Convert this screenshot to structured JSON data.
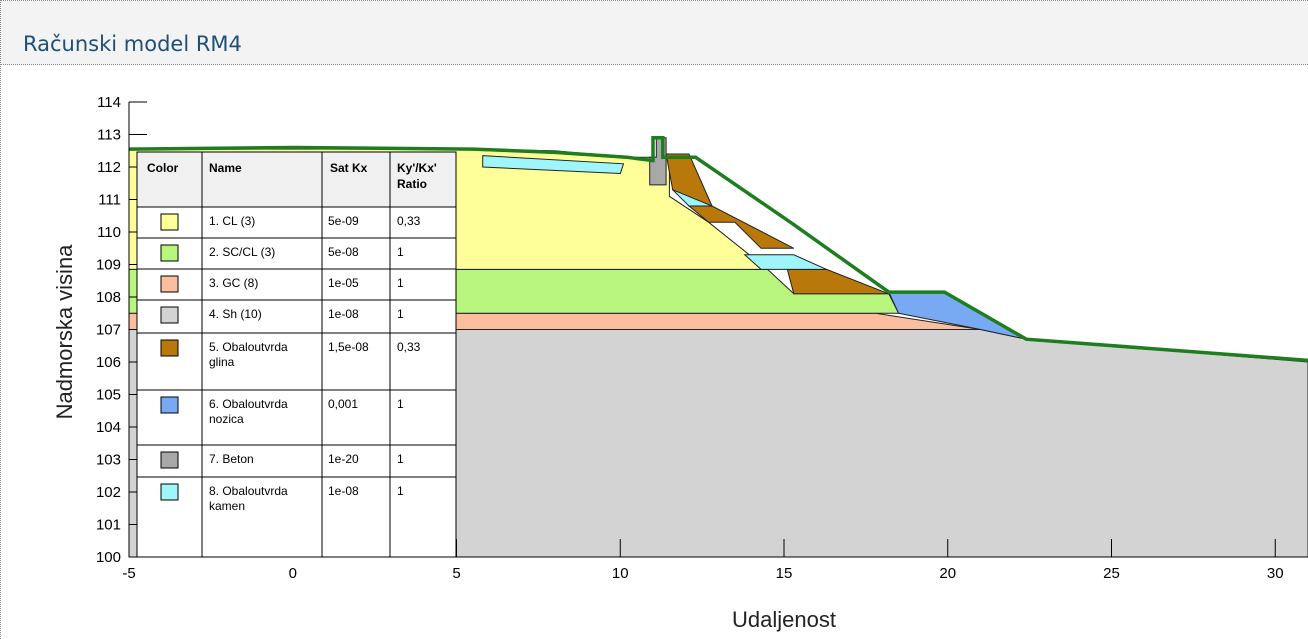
{
  "header": {
    "title": "Računski model RM4"
  },
  "chart_data": {
    "type": "diagram",
    "xlabel": "Udaljenost",
    "ylabel": "Nadmorska visina",
    "xlim": [
      -5,
      31
    ],
    "ylim": [
      100,
      114
    ],
    "x_ticks": [
      -5,
      0,
      5,
      10,
      15,
      20,
      25,
      30
    ],
    "y_ticks": [
      100,
      101,
      102,
      103,
      104,
      105,
      106,
      107,
      108,
      109,
      110,
      111,
      112,
      113,
      114
    ],
    "colors": {
      "clay": "#ffff99",
      "sc": "#b7f57d",
      "gc": "#fbbfa0",
      "shale": "#d3d3d3",
      "obal_glina": "#b8780a",
      "obal_nozica": "#77aaf2",
      "beton": "#a8a8a8",
      "obal_kamen": "#9ef5fa",
      "surface": "#1e7d1e"
    },
    "legend": {
      "headers": [
        "Color",
        "Name",
        "Sat Kx",
        "Ky'/Kx' Ratio"
      ],
      "rows": [
        {
          "color": "#ffff99",
          "name": "1. CL (3)",
          "sat_kx": "5e-09",
          "ratio": "0,33"
        },
        {
          "color": "#b7f57d",
          "name": "2. SC/CL (3)",
          "sat_kx": "5e-08",
          "ratio": "1"
        },
        {
          "color": "#fbbfa0",
          "name": "3. GC (8)",
          "sat_kx": "1e-05",
          "ratio": "1"
        },
        {
          "color": "#d3d3d3",
          "name": "4. Sh (10)",
          "sat_kx": "1e-08",
          "ratio": "1"
        },
        {
          "color": "#b8780a",
          "name": "5. Obaloutvrda glina",
          "sat_kx": "1,5e-08",
          "ratio": "0,33"
        },
        {
          "color": "#77aaf2",
          "name": "6. Obaloutvrda nozica",
          "sat_kx": "0,001",
          "ratio": "1"
        },
        {
          "color": "#a8a8a8",
          "name": "7. Beton",
          "sat_kx": "1e-20",
          "ratio": "1"
        },
        {
          "color": "#9ef5fa",
          "name": "8. Obaloutvrda kamen",
          "sat_kx": "1e-08",
          "ratio": "1"
        }
      ]
    },
    "regions": [
      {
        "material": "shale",
        "color": "#d3d3d3",
        "points": [
          [
            -5,
            100
          ],
          [
            31,
            100
          ],
          [
            31,
            106
          ],
          [
            22.4,
            106.7
          ],
          [
            21,
            107
          ],
          [
            -5,
            107
          ]
        ]
      },
      {
        "material": "gc",
        "color": "#fbbfa0",
        "points": [
          [
            -5,
            107
          ],
          [
            21,
            107
          ],
          [
            17.8,
            107.5
          ],
          [
            -5,
            107.5
          ]
        ]
      },
      {
        "material": "sc",
        "color": "#b7f57d",
        "points": [
          [
            -5,
            107.5
          ],
          [
            18.5,
            107.5
          ],
          [
            18.2,
            108.1
          ],
          [
            15.3,
            108.1
          ],
          [
            14.5,
            108.85
          ],
          [
            -5,
            108.85
          ]
        ]
      },
      {
        "material": "clay",
        "color": "#ffff99",
        "points": [
          [
            -5,
            108.85
          ],
          [
            14.5,
            108.85
          ],
          [
            12.7,
            110.3
          ],
          [
            11.5,
            111.1
          ],
          [
            11.5,
            112.3
          ],
          [
            10.2,
            112.3
          ],
          [
            8,
            112.5
          ],
          [
            5.5,
            112.55
          ],
          [
            -5,
            112.55
          ]
        ]
      },
      {
        "material": "obal_nozica",
        "color": "#77aaf2",
        "points": [
          [
            18.5,
            107.5
          ],
          [
            21,
            107
          ],
          [
            22.4,
            106.7
          ],
          [
            19.9,
            108.15
          ],
          [
            18.2,
            108.15
          ]
        ]
      },
      {
        "material": "obal_glina",
        "color": "#b8780a",
        "points": [
          [
            15.3,
            108.1
          ],
          [
            18.2,
            108.1
          ],
          [
            16.3,
            108.85
          ],
          [
            15.1,
            108.85
          ]
        ]
      },
      {
        "material": "obal_kamen",
        "color": "#9ef5fa",
        "points": [
          [
            13.8,
            109.3
          ],
          [
            14.3,
            108.85
          ],
          [
            16.3,
            108.85
          ],
          [
            15.3,
            109.3
          ]
        ]
      },
      {
        "material": "obal_glina",
        "color": "#b8780a",
        "points": [
          [
            12.7,
            110.3
          ],
          [
            13.5,
            110.3
          ],
          [
            14.3,
            109.5
          ],
          [
            15.3,
            109.5
          ],
          [
            12.8,
            110.8
          ],
          [
            12.1,
            110.8
          ]
        ]
      },
      {
        "material": "obal_kamen",
        "color": "#9ef5fa",
        "points": [
          [
            11.6,
            111.3
          ],
          [
            12.1,
            110.8
          ],
          [
            12.8,
            110.8
          ],
          [
            11.9,
            111.3
          ]
        ]
      },
      {
        "material": "obal_glina",
        "color": "#b8780a",
        "points": [
          [
            11.4,
            112.4
          ],
          [
            12.1,
            112.4
          ],
          [
            12.8,
            110.8
          ],
          [
            11.6,
            111.3
          ]
        ]
      },
      {
        "material": "obal_kamen",
        "color": "#9ef5fa",
        "points": [
          [
            5.8,
            112.35
          ],
          [
            10.1,
            112.1
          ],
          [
            10,
            111.8
          ],
          [
            5.8,
            112.0
          ]
        ]
      },
      {
        "material": "beton",
        "color": "#a8a8a8",
        "points": [
          [
            10.9,
            111.45
          ],
          [
            11.4,
            111.45
          ],
          [
            11.4,
            112.9
          ],
          [
            11.1,
            112.9
          ],
          [
            11.1,
            112.3
          ],
          [
            10.9,
            112.3
          ]
        ]
      }
    ],
    "surface": [
      [
        -5,
        112.55
      ],
      [
        0,
        112.6
      ],
      [
        5.5,
        112.55
      ],
      [
        8,
        112.45
      ],
      [
        10.2,
        112.3
      ],
      [
        11.0,
        112.2
      ],
      [
        11.0,
        112.9
      ],
      [
        11.3,
        112.9
      ],
      [
        11.3,
        112.3
      ],
      [
        12.3,
        112.3
      ],
      [
        15.2,
        110.3
      ],
      [
        18.2,
        108.15
      ],
      [
        19.9,
        108.15
      ],
      [
        22.4,
        106.7
      ],
      [
        31,
        106.05
      ]
    ]
  }
}
